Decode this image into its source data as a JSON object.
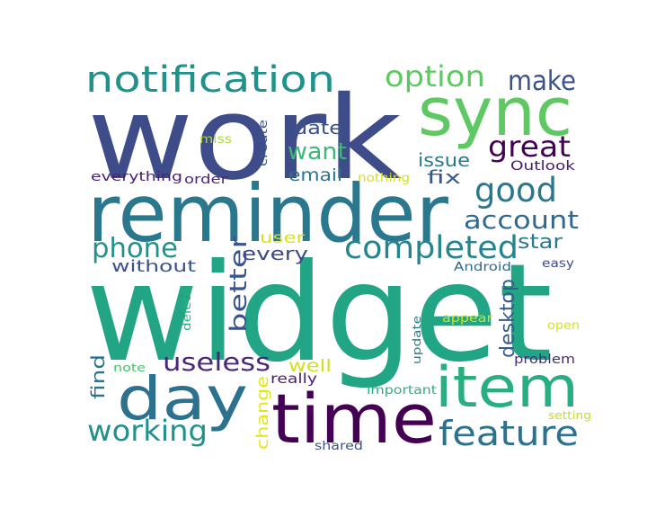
{
  "words": [
    {
      "text": "widget",
      "color": "#21a585"
    },
    {
      "text": "work",
      "color": "#3e4c8a"
    },
    {
      "text": "reminder",
      "color": "#2a788e"
    },
    {
      "text": "time",
      "color": "#440154"
    },
    {
      "text": "sync",
      "color": "#5ec962"
    },
    {
      "text": "day",
      "color": "#2c728e"
    },
    {
      "text": "item",
      "color": "#29af7f"
    },
    {
      "text": "notification",
      "color": "#21918c"
    },
    {
      "text": "option",
      "color": "#5ec962"
    },
    {
      "text": "make",
      "color": "#3b528b"
    },
    {
      "text": "completed",
      "color": "#25858e"
    },
    {
      "text": "good",
      "color": "#2a788e"
    },
    {
      "text": "great",
      "color": "#440154"
    },
    {
      "text": "feature",
      "color": "#2c728e"
    },
    {
      "text": "working",
      "color": "#21918c"
    },
    {
      "text": "phone",
      "color": "#21918c"
    },
    {
      "text": "account",
      "color": "#31688e"
    },
    {
      "text": "useless",
      "color": "#482878"
    },
    {
      "text": "want",
      "color": "#3aba76"
    },
    {
      "text": "better",
      "color": "#3b528b"
    },
    {
      "text": "desktop",
      "color": "#375b8d"
    },
    {
      "text": "star",
      "color": "#2a788e"
    },
    {
      "text": "issue",
      "color": "#2a788e"
    },
    {
      "text": "date",
      "color": "#3b528b"
    },
    {
      "text": "email",
      "color": "#2c728e"
    },
    {
      "text": "fix",
      "color": "#38598c"
    },
    {
      "text": "every",
      "color": "#3e4989"
    },
    {
      "text": "user",
      "color": "#d8e219"
    },
    {
      "text": "without",
      "color": "#3b528b"
    },
    {
      "text": "well",
      "color": "#d0e11c"
    },
    {
      "text": "find",
      "color": "#2c728e"
    },
    {
      "text": "change",
      "color": "#e5e419"
    },
    {
      "text": "really",
      "color": "#481f70"
    },
    {
      "text": "create",
      "color": "#39568c"
    },
    {
      "text": "miss",
      "color": "#addc30"
    },
    {
      "text": "nothing",
      "color": "#d5e21a"
    },
    {
      "text": "everything",
      "color": "#482173"
    },
    {
      "text": "order",
      "color": "#482878"
    },
    {
      "text": "Outlook",
      "color": "#481a6c"
    },
    {
      "text": "Android",
      "color": "#31688e"
    },
    {
      "text": "easy",
      "color": "#3e4a89"
    },
    {
      "text": "delete",
      "color": "#2ab07f"
    },
    {
      "text": "update",
      "color": "#287c8e"
    },
    {
      "text": "appear",
      "color": "#d2e21b"
    },
    {
      "text": "open",
      "color": "#d8e219"
    },
    {
      "text": "note",
      "color": "#4ac16d"
    },
    {
      "text": "problem",
      "color": "#46307e"
    },
    {
      "text": "important",
      "color": "#2ab07f"
    },
    {
      "text": "setting",
      "color": "#c2df23"
    },
    {
      "text": "shared",
      "color": "#3b528b"
    }
  ]
}
